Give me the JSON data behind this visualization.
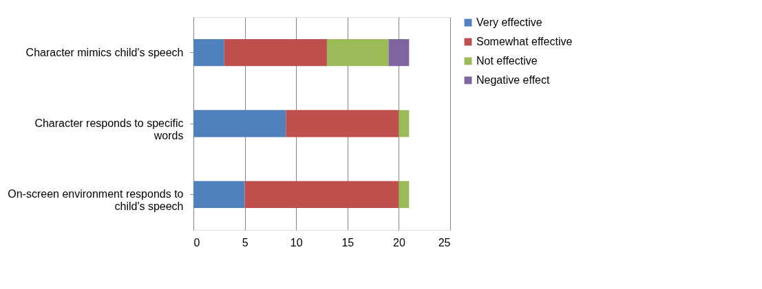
{
  "chart_data": {
    "type": "bar",
    "orientation": "horizontal",
    "stacked": true,
    "categories": [
      "Character mimics child's speech",
      "Character responds to specific words",
      "On-screen environment responds to child's speech"
    ],
    "series": [
      {
        "name": "Very effective",
        "color": "#4f81bd",
        "values": [
          3,
          9,
          5
        ]
      },
      {
        "name": "Somewhat effective",
        "color": "#c0504d",
        "values": [
          10,
          11,
          15
        ]
      },
      {
        "name": "Not effective",
        "color": "#9bbb59",
        "values": [
          6,
          1,
          1
        ]
      },
      {
        "name": "Negative effect",
        "color": "#8064a2",
        "values": [
          2,
          0,
          0
        ]
      }
    ],
    "xlim": [
      0,
      25
    ],
    "xticks": [
      0,
      5,
      10,
      15,
      20,
      25
    ],
    "grid": "x",
    "legend": "right"
  }
}
